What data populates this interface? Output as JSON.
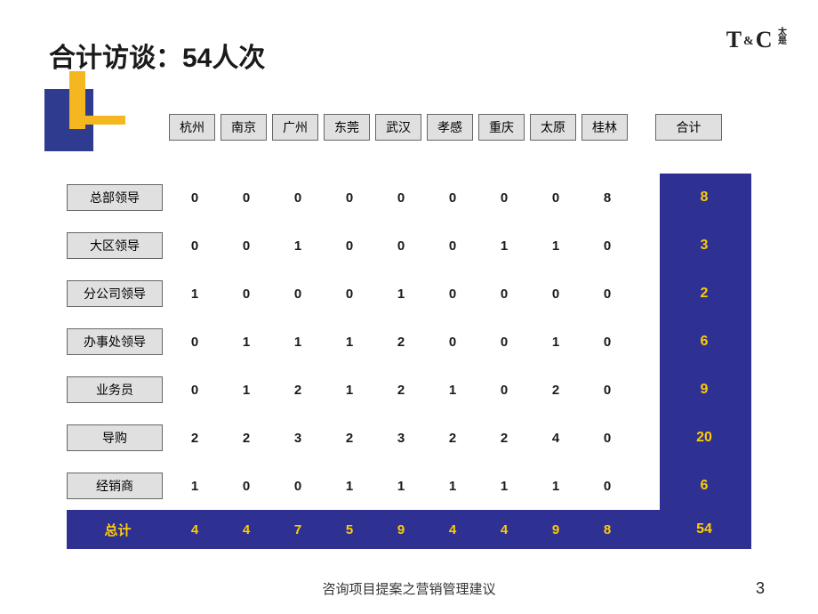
{
  "title": "合计访谈：54人次",
  "logo": {
    "t": "T",
    "amp": "&",
    "c": "C",
    "cn1": "太",
    "cn2": "是"
  },
  "headers": [
    "杭州",
    "南京",
    "广州",
    "东莞",
    "武汉",
    "孝感",
    "重庆",
    "太原",
    "桂林"
  ],
  "header_total": "合计",
  "rows": [
    {
      "label": "总部领导",
      "vals": [
        0,
        0,
        0,
        0,
        0,
        0,
        0,
        0,
        8
      ],
      "total": 8
    },
    {
      "label": "大区领导",
      "vals": [
        0,
        0,
        1,
        0,
        0,
        0,
        1,
        1,
        0
      ],
      "total": 3
    },
    {
      "label": "分公司领导",
      "vals": [
        1,
        0,
        0,
        0,
        1,
        0,
        0,
        0,
        0
      ],
      "total": 2
    },
    {
      "label": "办事处领导",
      "vals": [
        0,
        1,
        1,
        1,
        2,
        0,
        0,
        1,
        0
      ],
      "total": 6
    },
    {
      "label": "业务员",
      "vals": [
        0,
        1,
        2,
        1,
        2,
        1,
        0,
        2,
        0
      ],
      "total": 9
    },
    {
      "label": "导购",
      "vals": [
        2,
        2,
        3,
        2,
        3,
        2,
        2,
        4,
        0
      ],
      "total": 20
    },
    {
      "label": "经销商",
      "vals": [
        1,
        0,
        0,
        1,
        1,
        1,
        1,
        1,
        0
      ],
      "total": 6
    }
  ],
  "totals_row": {
    "label": "总计",
    "vals": [
      4,
      4,
      7,
      5,
      9,
      4,
      4,
      9,
      8
    ],
    "grand": 54
  },
  "footer": "咨询项目提案之营销管理建议",
  "page": "3",
  "colors": {
    "navy": "#2e3192",
    "gold": "#ffcc00",
    "orange": "#f5b720",
    "header_bg": "#e0e0e0"
  }
}
